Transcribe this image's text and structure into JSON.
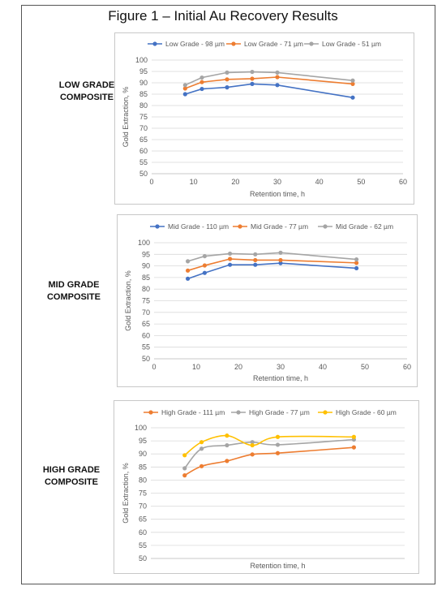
{
  "figure_title": "Figure 1 – Initial Au Recovery Results",
  "sections": [
    {
      "label_line1": "LOW GRADE",
      "label_line2": "COMPOSITE"
    },
    {
      "label_line1": "MID GRADE",
      "label_line2": "COMPOSITE"
    },
    {
      "label_line1": "HIGH GRADE",
      "label_line2": "COMPOSITE"
    }
  ],
  "chart_data": [
    {
      "type": "line",
      "title": "",
      "xlabel": "Retention time, h",
      "ylabel": "Gold Extraction, %",
      "xlim": [
        0,
        60
      ],
      "ylim": [
        50,
        100
      ],
      "x_ticks": [
        "0",
        "10",
        "20",
        "30",
        "40",
        "50",
        "60"
      ],
      "y_ticks": [
        "50",
        "55",
        "60",
        "65",
        "70",
        "75",
        "80",
        "85",
        "90",
        "95",
        "100"
      ],
      "show_x_ticks": true,
      "grid": true,
      "legend": "top",
      "x": [
        8,
        12,
        18,
        24,
        30,
        48
      ],
      "series": [
        {
          "name": "Low Grade - 98 µm",
          "color": "#4472C4",
          "values": [
            85.0,
            87.3,
            88.0,
            89.5,
            89.0,
            83.5
          ]
        },
        {
          "name": "Low Grade - 71 µm",
          "color": "#ED7D31",
          "values": [
            87.5,
            90.3,
            91.5,
            91.8,
            92.5,
            89.5
          ]
        },
        {
          "name": "Low Grade - 51 µm",
          "color": "#A5A5A5",
          "values": [
            89.0,
            92.3,
            94.5,
            94.8,
            94.5,
            91.0
          ]
        }
      ]
    },
    {
      "type": "line",
      "title": "",
      "xlabel": "Retention time, h",
      "ylabel": "Gold Extraction, %",
      "xlim": [
        0,
        60
      ],
      "ylim": [
        50,
        100
      ],
      "x_ticks": [
        "0",
        "10",
        "20",
        "30",
        "40",
        "50",
        "60"
      ],
      "y_ticks": [
        "50",
        "55",
        "60",
        "65",
        "70",
        "75",
        "80",
        "85",
        "90",
        "95",
        "100"
      ],
      "show_x_ticks": true,
      "grid": true,
      "legend": "top",
      "x": [
        8,
        12,
        18,
        24,
        30,
        48
      ],
      "series": [
        {
          "name": "Mid Grade - 110 µm",
          "color": "#4472C4",
          "values": [
            84.5,
            87.0,
            90.5,
            90.5,
            91.2,
            89.0
          ]
        },
        {
          "name": "Mid Grade - 77 µm",
          "color": "#ED7D31",
          "values": [
            88.0,
            90.2,
            93.0,
            92.5,
            92.5,
            91.3
          ]
        },
        {
          "name": "Mid Grade - 62 µm",
          "color": "#A5A5A5",
          "values": [
            92.0,
            94.2,
            95.3,
            95.0,
            95.7,
            92.8
          ]
        }
      ]
    },
    {
      "type": "line",
      "title": "",
      "xlabel": "Retention time, h",
      "ylabel": "Gold Extraction, %",
      "xlim": [
        0,
        60
      ],
      "ylim": [
        50,
        100
      ],
      "x_ticks": [],
      "y_ticks": [
        "50",
        "55",
        "60",
        "65",
        "70",
        "75",
        "80",
        "85",
        "90",
        "95",
        "100"
      ],
      "show_x_ticks": false,
      "grid": true,
      "legend": "top",
      "smooth": true,
      "x": [
        8,
        12,
        18,
        24,
        30,
        48
      ],
      "series": [
        {
          "name": "High Grade - 111 µm",
          "color": "#ED7D31",
          "values": [
            81.8,
            85.3,
            87.3,
            89.8,
            90.3,
            92.5
          ]
        },
        {
          "name": "High Grade - 77 µm",
          "color": "#A5A5A5",
          "values": [
            84.5,
            92.0,
            93.3,
            94.5,
            93.5,
            95.5
          ]
        },
        {
          "name": "High Grade - 60 µm",
          "color": "#FFC000",
          "values": [
            89.5,
            94.5,
            97.0,
            93.3,
            96.5,
            96.5
          ]
        }
      ]
    }
  ]
}
